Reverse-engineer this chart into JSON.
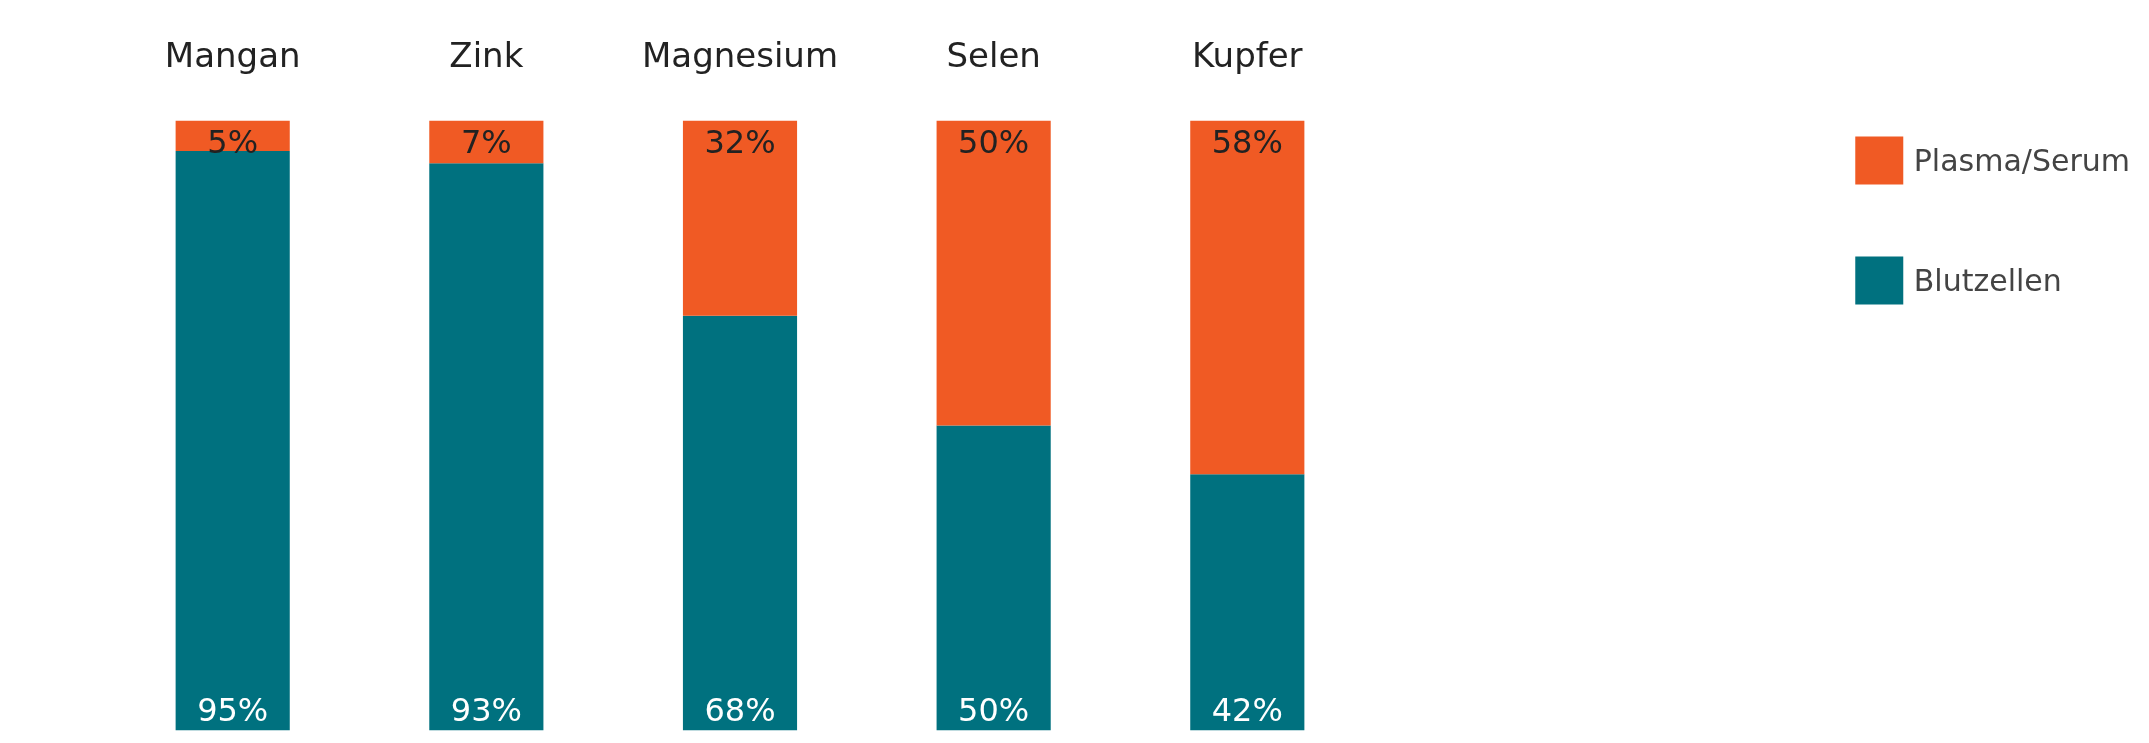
{
  "chart_data": {
    "type": "bar",
    "stacked": true,
    "legend": "right",
    "grid": false,
    "categories": [
      "Mangan",
      "Zink",
      "Magnesium",
      "Selen",
      "Kupfer"
    ],
    "series": [
      {
        "name": "Blutzellen",
        "color": "#00717f",
        "values": [
          95,
          93,
          68,
          50,
          42
        ],
        "value_labels": [
          "95%",
          "93%",
          "68%",
          "50%",
          "42%"
        ]
      },
      {
        "name": "Plasma/Serum",
        "color": "#f05a24",
        "values": [
          5,
          7,
          32,
          50,
          58
        ],
        "value_labels": [
          "5%",
          "7%",
          "32%",
          "50%",
          "58%"
        ]
      }
    ]
  }
}
